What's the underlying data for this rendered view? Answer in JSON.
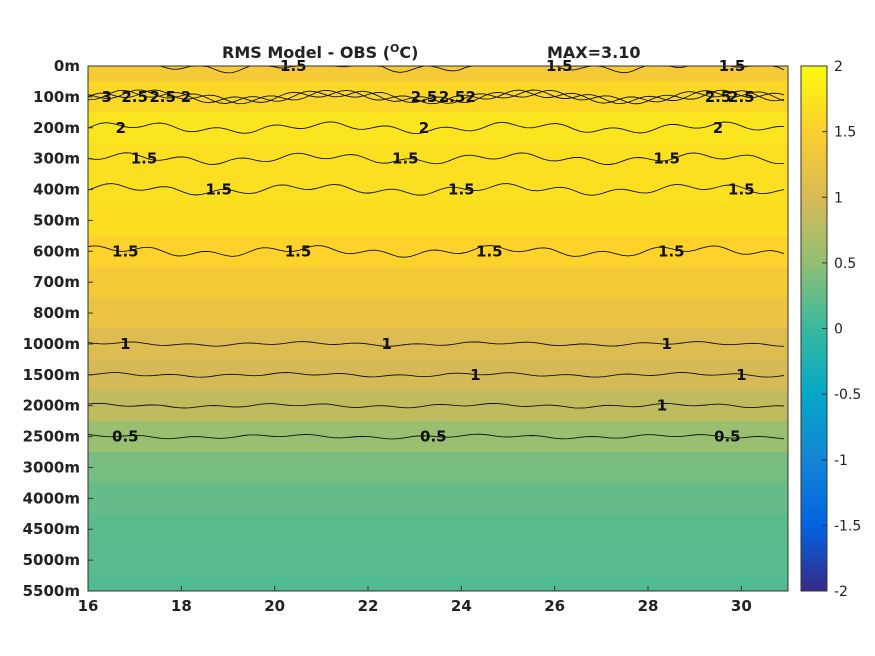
{
  "chart_data": {
    "type": "heatmap",
    "title": "RMS Model - OBS (°C)",
    "title_parts": {
      "main": "RMS Model - OBS (",
      "sup": "O",
      "tail": "C)"
    },
    "max_label": "MAX=3.10",
    "x": {
      "ticks": [
        "16",
        "18",
        "20",
        "22",
        "24",
        "26",
        "28",
        "30"
      ],
      "range": [
        16,
        31
      ]
    },
    "y": {
      "ticks": [
        "0m",
        "100m",
        "200m",
        "300m",
        "400m",
        "500m",
        "600m",
        "700m",
        "800m",
        "1000m",
        "1500m",
        "2000m",
        "2500m",
        "3000m",
        "4000m",
        "4500m",
        "5000m",
        "5500m"
      ]
    },
    "colorbar": {
      "ticks": [
        "2",
        "1.5",
        "1",
        "0.5",
        "0",
        "-0.5",
        "-1",
        "-1.5",
        "-2"
      ],
      "range": [
        -2,
        2
      ]
    },
    "field_by_depth": [
      {
        "depth": "0m",
        "value": 1.4
      },
      {
        "depth": "100m",
        "value": 1.6
      },
      {
        "depth": "200m",
        "value": 1.75
      },
      {
        "depth": "300m",
        "value": 1.7
      },
      {
        "depth": "400m",
        "value": 1.7
      },
      {
        "depth": "500m",
        "value": 1.68
      },
      {
        "depth": "600m",
        "value": 1.55
      },
      {
        "depth": "700m",
        "value": 1.4
      },
      {
        "depth": "800m",
        "value": 1.25
      },
      {
        "depth": "1000m",
        "value": 1.05
      },
      {
        "depth": "1500m",
        "value": 0.98
      },
      {
        "depth": "2000m",
        "value": 0.82
      },
      {
        "depth": "2500m",
        "value": 0.55
      },
      {
        "depth": "3000m",
        "value": 0.35
      },
      {
        "depth": "4000m",
        "value": 0.25
      },
      {
        "depth": "4500m",
        "value": 0.2
      },
      {
        "depth": "5000m",
        "value": 0.18
      },
      {
        "depth": "5500m",
        "value": 0.15
      }
    ],
    "contour_labels": [
      {
        "text": "3",
        "x": 16.4,
        "y": "100m"
      },
      {
        "text": "2.5",
        "x": 17.6,
        "y": "100m"
      },
      {
        "text": "2",
        "x": 18.1,
        "y": "100m"
      },
      {
        "text": "2.5",
        "x": 17.0,
        "y": "100m"
      },
      {
        "text": "2",
        "x": 16.7,
        "y": "200m"
      },
      {
        "text": "1.5",
        "x": 20.4,
        "y": "0m"
      },
      {
        "text": "1.5",
        "x": 26.1,
        "y": "0m"
      },
      {
        "text": "1.5",
        "x": 29.8,
        "y": "0m"
      },
      {
        "text": "2",
        "x": 24.2,
        "y": "100m"
      },
      {
        "text": "2.5",
        "x": 23.8,
        "y": "100m"
      },
      {
        "text": "2.5",
        "x": 23.2,
        "y": "100m"
      },
      {
        "text": "2",
        "x": 23.2,
        "y": "200m"
      },
      {
        "text": "2.5",
        "x": 29.5,
        "y": "100m"
      },
      {
        "text": "2.5",
        "x": 30.0,
        "y": "100m"
      },
      {
        "text": "2",
        "x": 29.5,
        "y": "200m"
      },
      {
        "text": "1.5",
        "x": 17.2,
        "y": "300m"
      },
      {
        "text": "1.5",
        "x": 22.8,
        "y": "300m"
      },
      {
        "text": "1.5",
        "x": 28.4,
        "y": "300m"
      },
      {
        "text": "1.5",
        "x": 18.8,
        "y": "400m"
      },
      {
        "text": "1.5",
        "x": 24.0,
        "y": "400m"
      },
      {
        "text": "1.5",
        "x": 30.0,
        "y": "400m"
      },
      {
        "text": "1.5",
        "x": 16.8,
        "y": "600m"
      },
      {
        "text": "1.5",
        "x": 20.5,
        "y": "600m"
      },
      {
        "text": "1.5",
        "x": 24.6,
        "y": "600m"
      },
      {
        "text": "1.5",
        "x": 28.5,
        "y": "600m"
      },
      {
        "text": "1",
        "x": 16.8,
        "y": "1000m"
      },
      {
        "text": "1",
        "x": 22.4,
        "y": "1000m"
      },
      {
        "text": "1",
        "x": 28.4,
        "y": "1000m"
      },
      {
        "text": "1",
        "x": 24.3,
        "y": "1500m"
      },
      {
        "text": "1",
        "x": 30.0,
        "y": "1500m"
      },
      {
        "text": "1",
        "x": 28.3,
        "y": "2000m"
      },
      {
        "text": "0.5",
        "x": 16.8,
        "y": "2500m"
      },
      {
        "text": "0.5",
        "x": 23.4,
        "y": "2500m"
      },
      {
        "text": "0.5",
        "x": 29.7,
        "y": "2500m"
      }
    ]
  },
  "colors": {
    "parula": [
      "#352a87",
      "#0363e1",
      "#1485d4",
      "#06a7c6",
      "#38b99e",
      "#92bf73",
      "#d9ba56",
      "#fcce2e",
      "#f9fb0e"
    ]
  }
}
